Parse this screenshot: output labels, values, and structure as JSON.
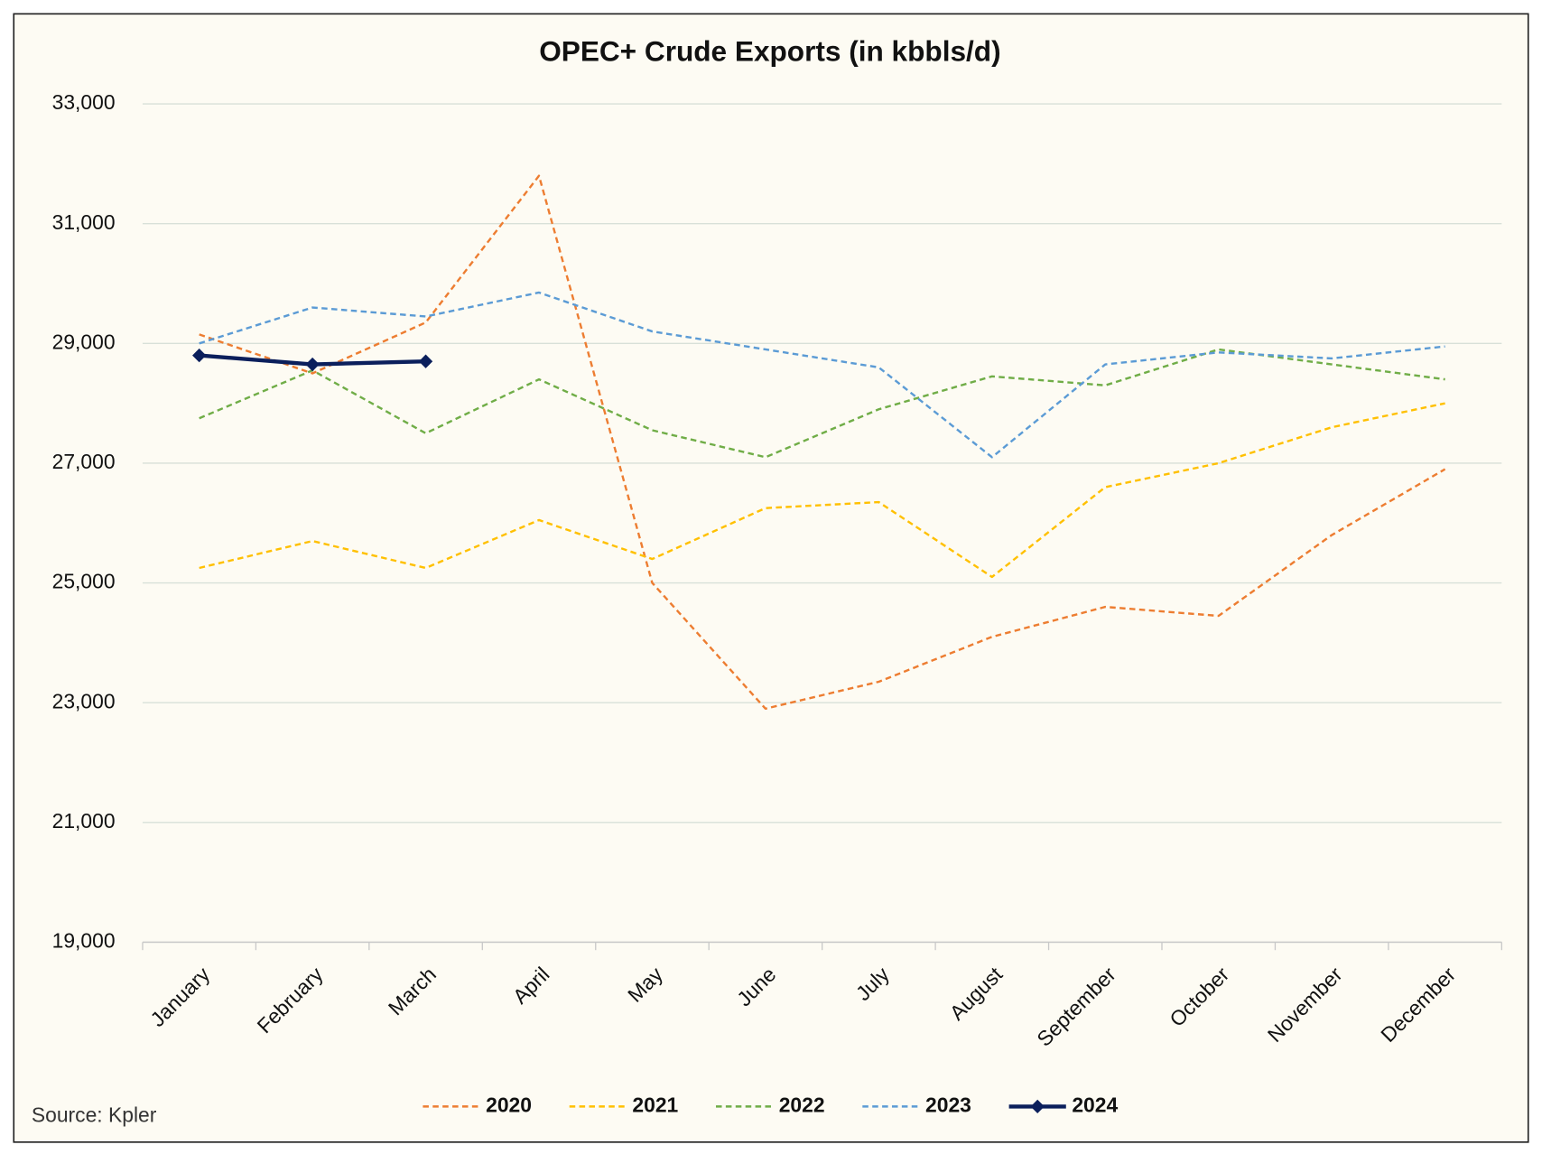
{
  "chart_data": {
    "type": "line",
    "title": "OPEC+ Crude Exports (in kbbls/d)",
    "source": "Source: Kpler",
    "categories": [
      "January",
      "February",
      "March",
      "April",
      "May",
      "June",
      "July",
      "August",
      "September",
      "October",
      "November",
      "December"
    ],
    "series": [
      {
        "name": "2020",
        "color": "#ed7d31",
        "line_style": "dashed",
        "values": [
          29150,
          28500,
          29350,
          31800,
          25000,
          22900,
          23350,
          24100,
          24600,
          24450,
          25800,
          26900
        ]
      },
      {
        "name": "2021",
        "color": "#ffc000",
        "line_style": "dashed",
        "values": [
          25250,
          25700,
          25250,
          26050,
          25400,
          26250,
          26350,
          25100,
          26600,
          27000,
          27600,
          28000
        ]
      },
      {
        "name": "2022",
        "color": "#70ad47",
        "line_style": "dashed",
        "values": [
          27750,
          28550,
          27500,
          28400,
          27550,
          27100,
          27900,
          28450,
          28300,
          28900,
          28650,
          28400
        ]
      },
      {
        "name": "2023",
        "color": "#5b9bd5",
        "line_style": "dashed",
        "values": [
          29000,
          29600,
          29450,
          29850,
          29200,
          28900,
          28600,
          27100,
          28650,
          28850,
          28750,
          28950
        ]
      },
      {
        "name": "2024",
        "color": "#0b1f5c",
        "line_style": "solid",
        "marker": "diamond",
        "values": [
          28800,
          28650,
          28700,
          null,
          null,
          null,
          null,
          null,
          null,
          null,
          null,
          null
        ]
      }
    ],
    "ylim": [
      19000,
      33000
    ],
    "yticks": [
      {
        "value": 19000,
        "label": "19,000"
      },
      {
        "value": 21000,
        "label": "21,000"
      },
      {
        "value": 23000,
        "label": "23,000"
      },
      {
        "value": 25000,
        "label": "25,000"
      },
      {
        "value": 27000,
        "label": "27,000"
      },
      {
        "value": 29000,
        "label": "29,000"
      },
      {
        "value": 31000,
        "label": "31,000"
      },
      {
        "value": 33000,
        "label": "33,000"
      }
    ],
    "grid": true,
    "legend": "bottom"
  }
}
